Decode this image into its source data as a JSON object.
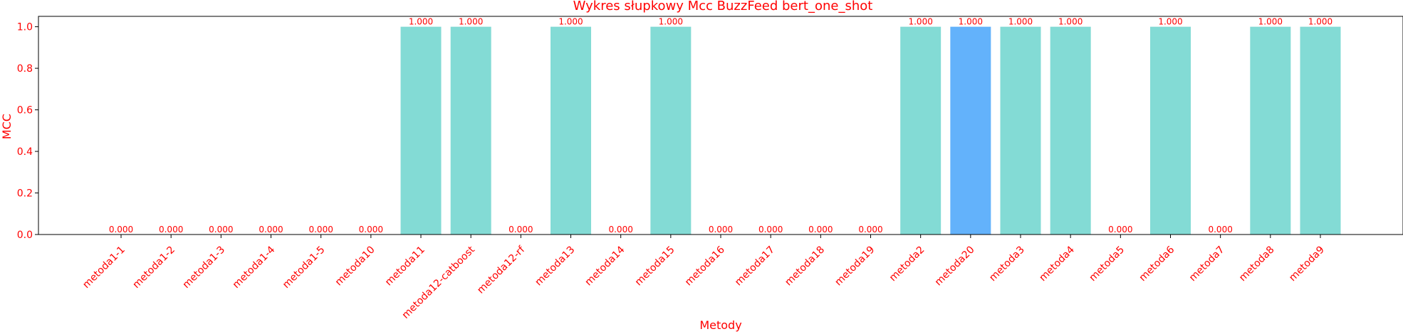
{
  "chart_data": {
    "type": "bar",
    "title": "Wykres słupkowy Mcc BuzzFeed bert_one_shot",
    "xlabel": "Metody",
    "ylabel": "MCC",
    "ylim": [
      0,
      1.05
    ],
    "yticks": [
      0.0,
      0.2,
      0.4,
      0.6,
      0.8,
      1.0
    ],
    "ytick_labels": [
      "0.0",
      "0.2",
      "0.4",
      "0.6",
      "0.8",
      "1.0"
    ],
    "grid": false,
    "text_color": "#ff0000",
    "bar_color": "#83dbd5",
    "highlight_color": "#63b2fb",
    "highlight_index": 17,
    "categories": [
      "metoda1-1",
      "metoda1-2",
      "metoda1-3",
      "metoda1-4",
      "metoda1-5",
      "metoda10",
      "metoda11",
      "metoda12-catboost",
      "metoda12-rf",
      "metoda13",
      "metoda14",
      "metoda15",
      "metoda16",
      "metoda17",
      "metoda18",
      "metoda19",
      "metoda2",
      "metoda20",
      "metoda3",
      "metoda4",
      "metoda5",
      "metoda6",
      "metoda7",
      "metoda8",
      "metoda9"
    ],
    "values": [
      0,
      0,
      0,
      0,
      0,
      0,
      1,
      1,
      0,
      1,
      0,
      1,
      0,
      0,
      0,
      0,
      1,
      1,
      1,
      1,
      0,
      1,
      0,
      1,
      1
    ],
    "data_labels": [
      "0.000",
      "0.000",
      "0.000",
      "0.000",
      "0.000",
      "0.000",
      "1.000",
      "1.000",
      "0.000",
      "1.000",
      "0.000",
      "1.000",
      "0.000",
      "0.000",
      "0.000",
      "0.000",
      "1.000",
      "1.000",
      "1.000",
      "1.000",
      "0.000",
      "1.000",
      "0.000",
      "1.000",
      "1.000"
    ]
  }
}
